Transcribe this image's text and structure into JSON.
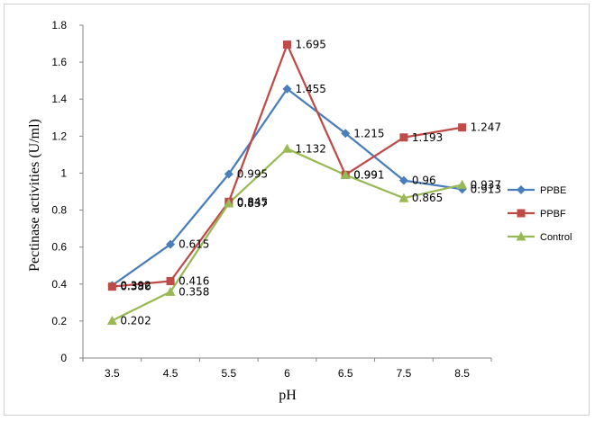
{
  "chart_data": {
    "type": "line",
    "categories": [
      "3.5",
      "4.5",
      "5.5",
      "6",
      "6.5",
      "7.5",
      "8.5"
    ],
    "ylim": [
      0,
      1.8
    ],
    "yticks": [
      "0",
      "0.2",
      "0.4",
      "0.6",
      "0.8",
      "1",
      "1.2",
      "1.4",
      "1.6",
      "1.8"
    ],
    "xlabel": "pH",
    "ylabel": "Pectinase activities (U/ml)",
    "grid": false,
    "legend": "right",
    "series": [
      {
        "name": "PPBE",
        "color": "#4a7ebb",
        "marker": "diamond",
        "values": [
          0.392,
          0.615,
          0.995,
          1.455,
          1.215,
          0.96,
          0.913
        ],
        "labels": [
          "0.392",
          "0.615",
          "0.995",
          "1.455",
          "1.215",
          "0.96",
          "0.913"
        ]
      },
      {
        "name": "PPBF",
        "color": "#be4b48",
        "marker": "square",
        "values": [
          0.386,
          0.416,
          0.845,
          1.695,
          0.991,
          1.193,
          1.247
        ],
        "labels": [
          "0.386",
          "0.416",
          "0.845",
          "1.695",
          "0.991",
          "1.193",
          "1.247"
        ]
      },
      {
        "name": "Control",
        "color": "#98b954",
        "marker": "triangle",
        "values": [
          0.202,
          0.358,
          0.837,
          1.132,
          0.99,
          0.865,
          0.937
        ],
        "labels": [
          "0.202",
          "0.358",
          "0.837",
          "1.132",
          "0.99",
          "0.865",
          "0.937"
        ]
      }
    ]
  }
}
